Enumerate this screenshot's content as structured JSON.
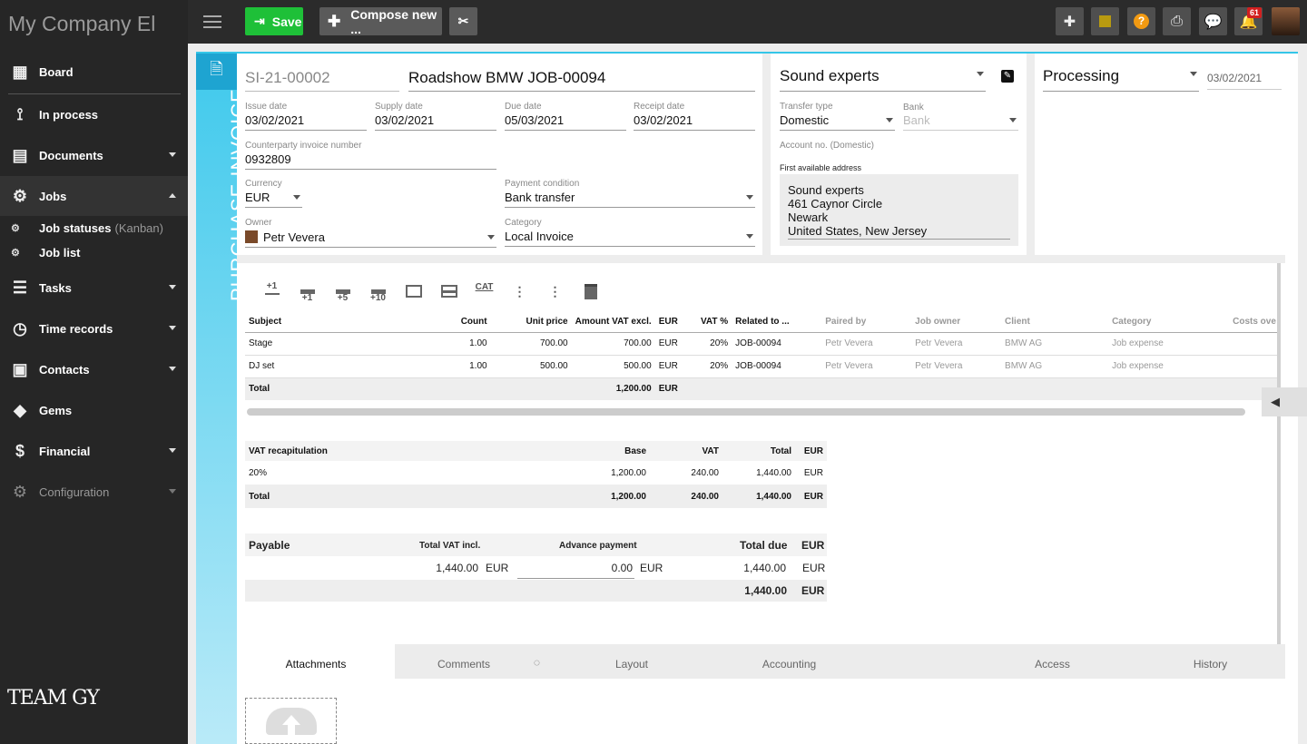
{
  "app": {
    "brand": "My Company El"
  },
  "toolbar": {
    "save_label": "Save",
    "compose_label": "Compose new ..."
  },
  "notifications": {
    "count": "61"
  },
  "sidebar": {
    "items": [
      {
        "label": "Board",
        "icon": "grid-icon"
      },
      {
        "label": "In process",
        "icon": "process-icon"
      },
      {
        "label": "Documents",
        "icon": "document-icon"
      },
      {
        "label": "Jobs",
        "icon": "jobs-icon"
      },
      {
        "label": "Tasks",
        "icon": "tasks-icon"
      },
      {
        "label": "Time records",
        "icon": "clock-icon"
      },
      {
        "label": "Contacts",
        "icon": "contacts-icon"
      },
      {
        "label": "Gems",
        "icon": "gem-icon"
      },
      {
        "label": "Financial",
        "icon": "dollar-icon"
      },
      {
        "label": "Configuration",
        "icon": "gear-icon"
      }
    ],
    "sub_items": [
      {
        "label": "Job statuses",
        "suffix": "(Kanban)"
      },
      {
        "label": "Job list",
        "suffix": ""
      }
    ],
    "logo": "TEAM GY"
  },
  "doc": {
    "type_label": "PURCHASE INVOICE",
    "number": "SI-21-00002",
    "title": "Roadshow BMW JOB-00094",
    "issue_date_label": "Issue date",
    "issue_date": "03/02/2021",
    "supply_date_label": "Supply date",
    "supply_date": "03/02/2021",
    "due_date_label": "Due date",
    "due_date": "05/03/2021",
    "receipt_date_label": "Receipt date",
    "receipt_date": "03/02/2021",
    "cp_label": "Counterparty invoice number",
    "cp_number": "0932809",
    "currency_label": "Currency",
    "currency": "EUR",
    "payment_label": "Payment condition",
    "payment": "Bank transfer",
    "owner_label": "Owner",
    "owner": "Petr Vevera",
    "category_label": "Category",
    "category": "Local Invoice"
  },
  "counterparty": {
    "name": "Sound experts",
    "transfer_label": "Transfer type",
    "transfer": "Domestic",
    "bank_label": "Bank",
    "bank_placeholder": "Bank",
    "account_label": "Account no. (Domestic)",
    "address_label": "First available address",
    "address": [
      "Sound experts",
      "461 Caynor Circle",
      "Newark",
      "United States, New Jersey"
    ]
  },
  "status": {
    "value": "Processing",
    "date": "03/02/2021"
  },
  "item_tools": [
    {
      "text": "+1",
      "icon": "insert-above-icon"
    },
    {
      "text": "+1",
      "icon": "insert-below-icon"
    },
    {
      "text": "+5",
      "icon": "insert-5-icon"
    },
    {
      "text": "+10",
      "icon": "insert-10-icon"
    },
    {
      "text": "",
      "icon": "expand-rows-icon"
    },
    {
      "text": "",
      "icon": "collapse-rows-icon"
    },
    {
      "text": "CAT",
      "icon": "category-icon"
    },
    {
      "text": "",
      "icon": "more-vertical-icon"
    },
    {
      "text": "",
      "icon": "more-right-icon"
    },
    {
      "text": "",
      "icon": "trash-icon"
    }
  ],
  "items": {
    "headers": [
      "Subject",
      "Count",
      "Unit price",
      "Amount VAT excl.",
      "EUR",
      "VAT %",
      "Related to ...",
      "Paired by",
      "Job owner",
      "Client",
      "Category",
      "Costs ove"
    ],
    "rows": [
      [
        "Stage",
        "1.00",
        "700.00",
        "700.00",
        "EUR",
        "20%",
        "JOB-00094",
        "Petr Vevera",
        "Petr Vevera",
        "BMW AG",
        "Job expense",
        ""
      ],
      [
        "DJ set",
        "1.00",
        "500.00",
        "500.00",
        "EUR",
        "20%",
        "JOB-00094",
        "Petr Vevera",
        "Petr Vevera",
        "BMW AG",
        "Job expense",
        ""
      ]
    ],
    "total_label": "Total",
    "total": "1,200.00",
    "total_cur": "EUR"
  },
  "vat": {
    "headers": [
      "VAT recapitulation",
      "Base",
      "VAT",
      "Total",
      "EUR"
    ],
    "rows": [
      [
        "20%",
        "1,200.00",
        "240.00",
        "1,440.00",
        "EUR"
      ]
    ],
    "total": [
      "Total",
      "1,200.00",
      "240.00",
      "1,440.00",
      "EUR"
    ]
  },
  "payable": {
    "label": "Payable",
    "total_vat_label": "Total VAT incl.",
    "advance_label": "Advance payment",
    "due_label": "Total due",
    "cur": "EUR",
    "total_vat": "1,440.00",
    "advance": "0.00",
    "due": "1,440.00",
    "grand": "1,440.00"
  },
  "tabs": [
    "Attachments",
    "Comments",
    "Layout",
    "Accounting",
    "Access",
    "History"
  ]
}
